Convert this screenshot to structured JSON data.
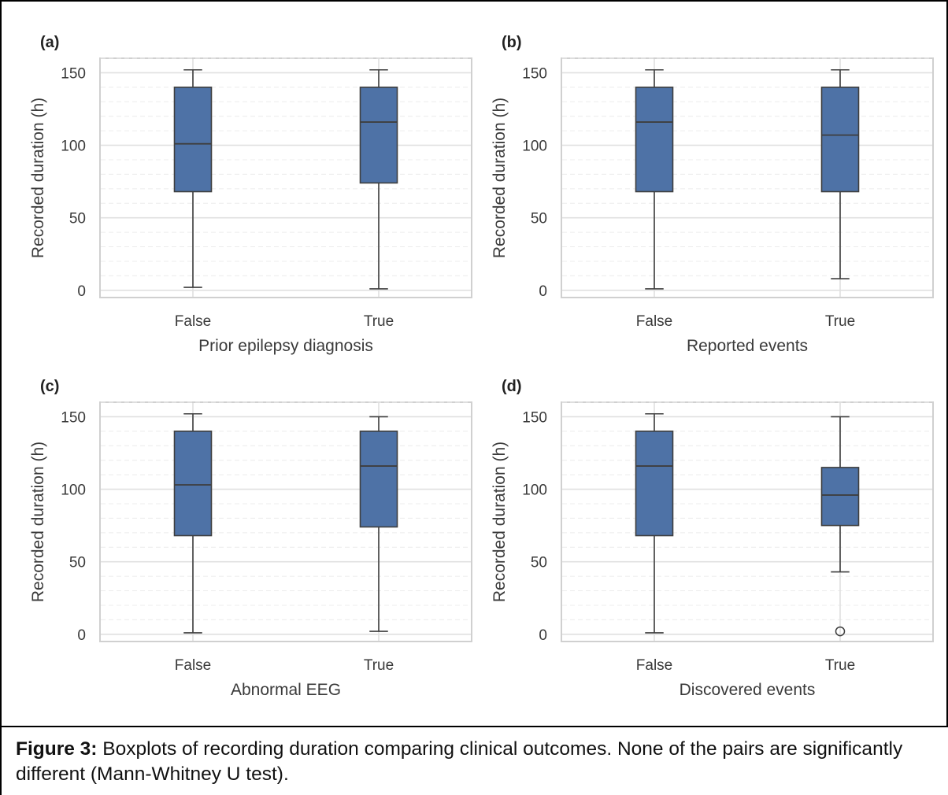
{
  "caption": {
    "label": "Figure 3:",
    "text": " Boxplots of recording duration comparing clinical outcomes. None of the pairs are significantly different (Mann-Whitney U test)."
  },
  "colors": {
    "box": "#4e72a6",
    "line": "#3e3e3e",
    "grid": "#e0e0e0"
  },
  "chart_data": [
    {
      "type": "box",
      "panel": "(a)",
      "xlabel": "Prior epilepsy diagnosis",
      "ylabel": "Recorded duration (h)",
      "ylim": [
        -5,
        160
      ],
      "yticks": [
        0,
        50,
        100,
        150
      ],
      "grid": true,
      "categories": [
        "False",
        "True"
      ],
      "boxes": [
        {
          "whislo": 2,
          "q1": 68,
          "med": 101,
          "q3": 140,
          "whishi": 152,
          "fliers": []
        },
        {
          "whislo": 1,
          "q1": 74,
          "med": 116,
          "q3": 140,
          "whishi": 152,
          "fliers": []
        }
      ]
    },
    {
      "type": "box",
      "panel": "(b)",
      "xlabel": "Reported events",
      "ylabel": "Recorded duration (h)",
      "ylim": [
        -5,
        160
      ],
      "yticks": [
        0,
        50,
        100,
        150
      ],
      "grid": true,
      "categories": [
        "False",
        "True"
      ],
      "boxes": [
        {
          "whislo": 1,
          "q1": 68,
          "med": 116,
          "q3": 140,
          "whishi": 152,
          "fliers": []
        },
        {
          "whislo": 8,
          "q1": 68,
          "med": 107,
          "q3": 140,
          "whishi": 152,
          "fliers": []
        }
      ]
    },
    {
      "type": "box",
      "panel": "(c)",
      "xlabel": "Abnormal EEG",
      "ylabel": "Recorded duration (h)",
      "ylim": [
        -5,
        160
      ],
      "yticks": [
        0,
        50,
        100,
        150
      ],
      "grid": true,
      "categories": [
        "False",
        "True"
      ],
      "boxes": [
        {
          "whislo": 1,
          "q1": 68,
          "med": 103,
          "q3": 140,
          "whishi": 152,
          "fliers": []
        },
        {
          "whislo": 2,
          "q1": 74,
          "med": 116,
          "q3": 140,
          "whishi": 150,
          "fliers": []
        }
      ]
    },
    {
      "type": "box",
      "panel": "(d)",
      "xlabel": "Discovered events",
      "ylabel": "Recorded duration (h)",
      "ylim": [
        -5,
        160
      ],
      "yticks": [
        0,
        50,
        100,
        150
      ],
      "grid": true,
      "categories": [
        "False",
        "True"
      ],
      "boxes": [
        {
          "whislo": 1,
          "q1": 68,
          "med": 116,
          "q3": 140,
          "whishi": 152,
          "fliers": []
        },
        {
          "whislo": 43,
          "q1": 75,
          "med": 96,
          "q3": 115,
          "whishi": 150,
          "fliers": [
            2
          ]
        }
      ]
    }
  ]
}
